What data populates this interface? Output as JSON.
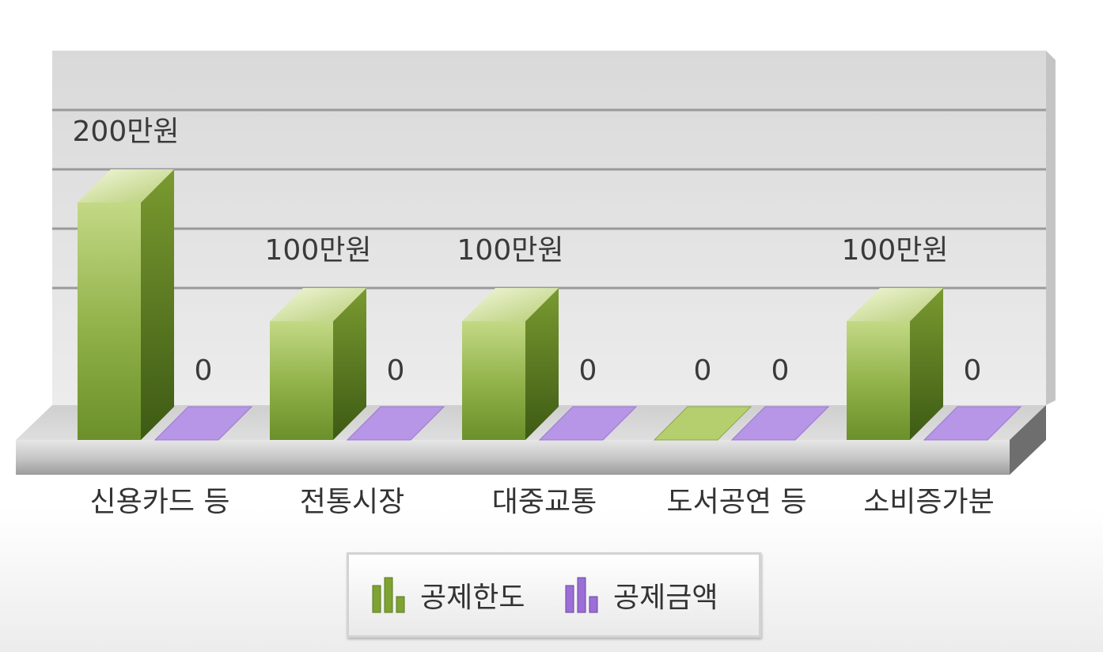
{
  "chart_data": {
    "type": "bar",
    "style": "3d-clustered-column",
    "categories": [
      "신용카드 등",
      "전통시장",
      "대중교통",
      "도서공연 등",
      "소비증가분"
    ],
    "series": [
      {
        "name": "공제한도",
        "values": [
          200,
          100,
          100,
          0,
          100
        ],
        "labels": [
          "200만원",
          "100만원",
          "100만원",
          "0",
          "100만원"
        ],
        "color": "#7fa332"
      },
      {
        "name": "공제금액",
        "values": [
          0,
          0,
          0,
          0,
          0
        ],
        "labels": [
          "0",
          "0",
          "0",
          "0",
          "0"
        ],
        "color": "#9b6fd6"
      }
    ],
    "ylim": [
      0,
      400
    ],
    "grid": true,
    "legend": "bottom",
    "title": "",
    "xlabel": "",
    "ylabel": ""
  },
  "legend": {
    "items": [
      {
        "label": "공제한도",
        "icon": "green-bar-chart-icon",
        "color": "#7fa332"
      },
      {
        "label": "공제금액",
        "icon": "purple-bar-chart-icon",
        "color": "#9b6fd6"
      }
    ]
  }
}
